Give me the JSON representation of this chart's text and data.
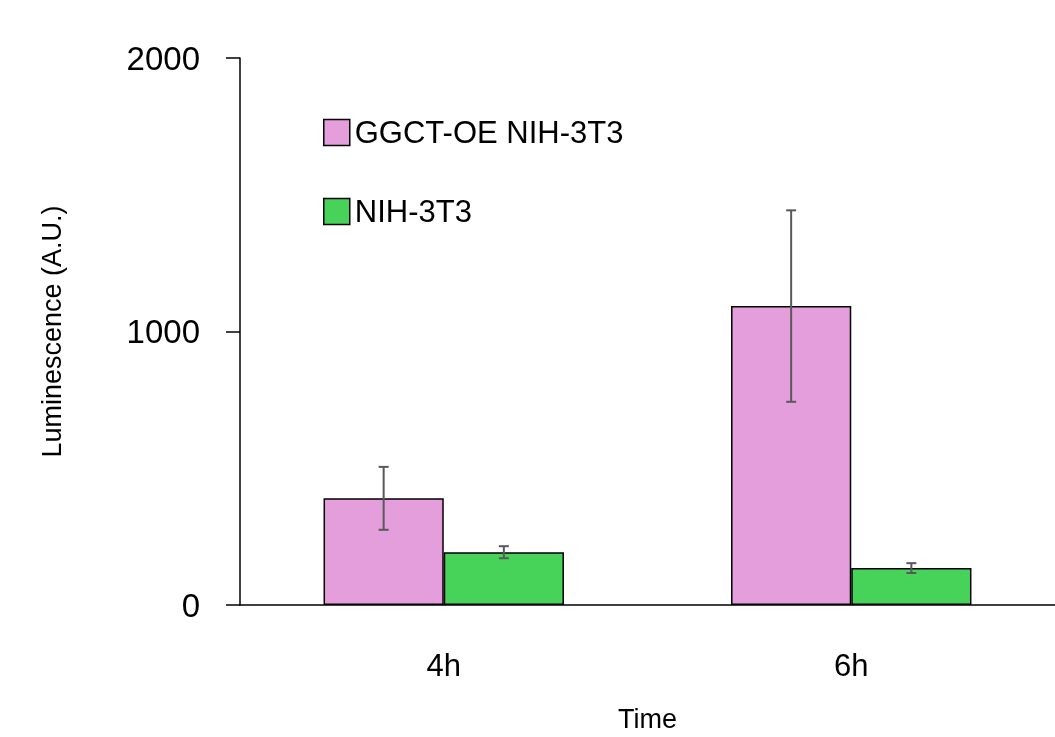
{
  "chart_data": {
    "type": "bar",
    "xlabel": "Time",
    "ylabel": "Luminescence (A.U.)",
    "categories": [
      "4h",
      "6h"
    ],
    "series": [
      {
        "name": "GGCT-OE NIH-3T3",
        "color": "#e39edb",
        "values": [
          390,
          1093
        ],
        "errors": [
          115,
          350
        ]
      },
      {
        "name": "NIH-3T3",
        "color": "#47d35a",
        "values": [
          193,
          135
        ],
        "errors": [
          22,
          18
        ]
      }
    ],
    "ylim": [
      0,
      2000
    ],
    "yticks": [
      0,
      1000,
      2000
    ],
    "grid": false,
    "legend": "top left"
  }
}
